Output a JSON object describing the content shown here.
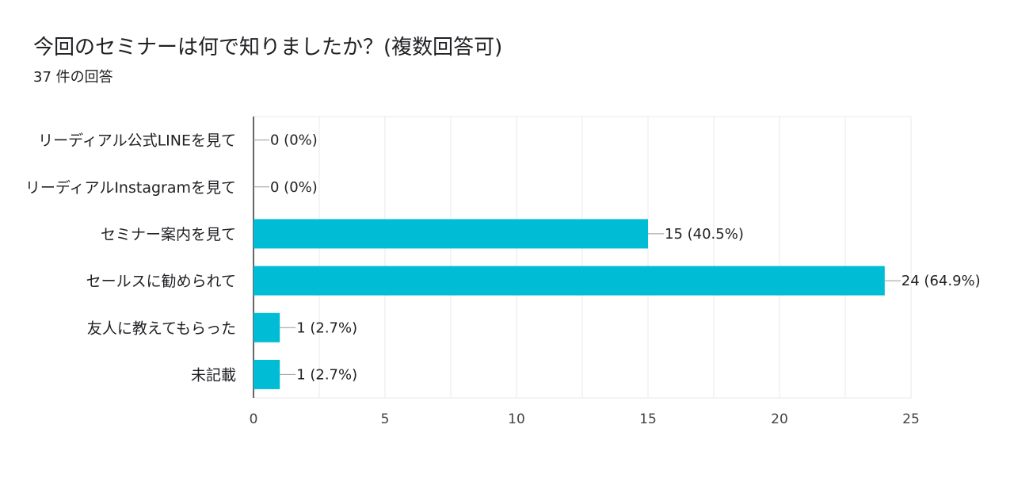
{
  "header": {
    "title": "今回のセミナーは何で知りましたか？(複数回答可)",
    "response_count": "37 件の回答"
  },
  "colors": {
    "bar": "#00bcd4",
    "grid": "#e8e8e8",
    "axis": "#333333",
    "text": "#202124"
  },
  "chart_data": {
    "type": "bar",
    "orientation": "horizontal",
    "categories": [
      "リーディアル公式LINEを見て",
      "リーディアルInstagramを見て",
      "セミナー案内を見て",
      "セールスに勧められて",
      "友人に教えてもらった",
      "未記載"
    ],
    "values": [
      0,
      0,
      15,
      24,
      1,
      1
    ],
    "data_labels": [
      "0 (0%)",
      "0 (0%)",
      "15 (40.5%)",
      "24 (64.9%)",
      "1 (2.7%)",
      "1 (2.7%)"
    ],
    "x_ticks": [
      0,
      5,
      10,
      15,
      20,
      25
    ],
    "xlim": [
      0,
      25
    ],
    "grid": true
  }
}
